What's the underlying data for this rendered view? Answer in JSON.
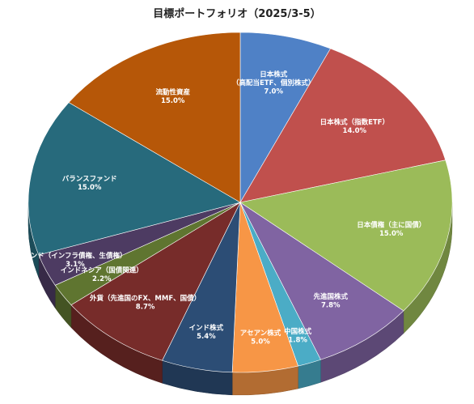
{
  "chart_data": {
    "type": "pie",
    "title": "目標ポートフォリオ（2025/3-5）",
    "slices": [
      {
        "label_lines": [
          "日本株式",
          "（高配当ETF、個別株式）"
        ],
        "value_label": "7.0%",
        "value": 7.0,
        "color": "#4f81c6"
      },
      {
        "label_lines": [
          "日本株式（指数ETF）"
        ],
        "value_label": "14.0%",
        "value": 14.0,
        "color": "#c0504d"
      },
      {
        "label_lines": [
          "日本債権（主に国債）"
        ],
        "value_label": "15.0%",
        "value": 15.0,
        "color": "#9bbb59"
      },
      {
        "label_lines": [
          "先進国株式"
        ],
        "value_label": "7.8%",
        "value": 7.8,
        "color": "#8064a2"
      },
      {
        "label_lines": [
          "中国株式"
        ],
        "value_label": "1.8%",
        "value": 1.8,
        "color": "#4bacc6"
      },
      {
        "label_lines": [
          "アセアン株式"
        ],
        "value_label": "5.0%",
        "value": 5.0,
        "color": "#f79646"
      },
      {
        "label_lines": [
          "インド株式"
        ],
        "value_label": "5.4%",
        "value": 5.4,
        "color": "#2c4d75"
      },
      {
        "label_lines": [
          "外貨（先進国のFX、MMF、国債）"
        ],
        "value_label": "8.7%",
        "value": 8.7,
        "color": "#772c2a"
      },
      {
        "label_lines": [
          "インドネシア（国債関連）"
        ],
        "value_label": "2.2%",
        "value": 2.2,
        "color": "#5f7530"
      },
      {
        "label_lines": [
          "インド（インフラ債権、生債権）"
        ],
        "value_label": "3.1%",
        "value": 3.1,
        "color": "#4d3b62"
      },
      {
        "label_lines": [
          "バランスファンド"
        ],
        "value_label": "15.0%",
        "value": 15.0,
        "color": "#276a7c"
      },
      {
        "label_lines": [
          "流動性資産"
        ],
        "value_label": "15.0%",
        "value": 15.0,
        "color": "#b65708"
      }
    ]
  }
}
